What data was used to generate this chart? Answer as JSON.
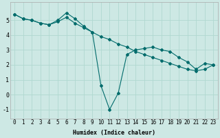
{
  "xlabel": "Humidex (Indice chaleur)",
  "bg_color": "#cde8e4",
  "line_color": "#006b6b",
  "grid_color": "#b0d8d0",
  "line1_x": [
    0,
    1,
    2,
    3,
    4,
    5,
    6,
    7,
    8,
    9,
    10,
    11,
    12,
    13,
    14,
    15,
    16,
    17,
    18,
    19,
    20,
    21,
    22,
    23
  ],
  "line1_y": [
    5.4,
    5.1,
    5.0,
    4.8,
    4.7,
    5.0,
    5.5,
    5.1,
    4.6,
    4.2,
    0.6,
    -1.0,
    0.1,
    2.7,
    3.0,
    3.1,
    3.2,
    3.0,
    2.9,
    2.5,
    2.2,
    1.7,
    2.1,
    2.0
  ],
  "line2_x": [
    0,
    1,
    2,
    3,
    4,
    5,
    6,
    7,
    8,
    9,
    10,
    11,
    12,
    13,
    14,
    15,
    16,
    17,
    18,
    19,
    20,
    21,
    22,
    23
  ],
  "line2_y": [
    5.4,
    5.1,
    5.0,
    4.8,
    4.7,
    4.9,
    5.2,
    4.8,
    4.5,
    4.2,
    3.9,
    3.7,
    3.4,
    3.2,
    2.9,
    2.7,
    2.5,
    2.3,
    2.1,
    1.9,
    1.7,
    1.6,
    1.7,
    2.0
  ],
  "xlim": [
    -0.5,
    23.5
  ],
  "ylim": [
    -1.6,
    6.2
  ],
  "yticks": [
    -1,
    0,
    1,
    2,
    3,
    4,
    5
  ],
  "xticks": [
    0,
    1,
    2,
    3,
    4,
    5,
    6,
    7,
    8,
    9,
    10,
    11,
    12,
    13,
    14,
    15,
    16,
    17,
    18,
    19,
    20,
    21,
    22,
    23
  ],
  "tick_fontsize": 5.5,
  "xlabel_fontsize": 6.0,
  "marker_size": 2.0,
  "line_width": 0.8
}
